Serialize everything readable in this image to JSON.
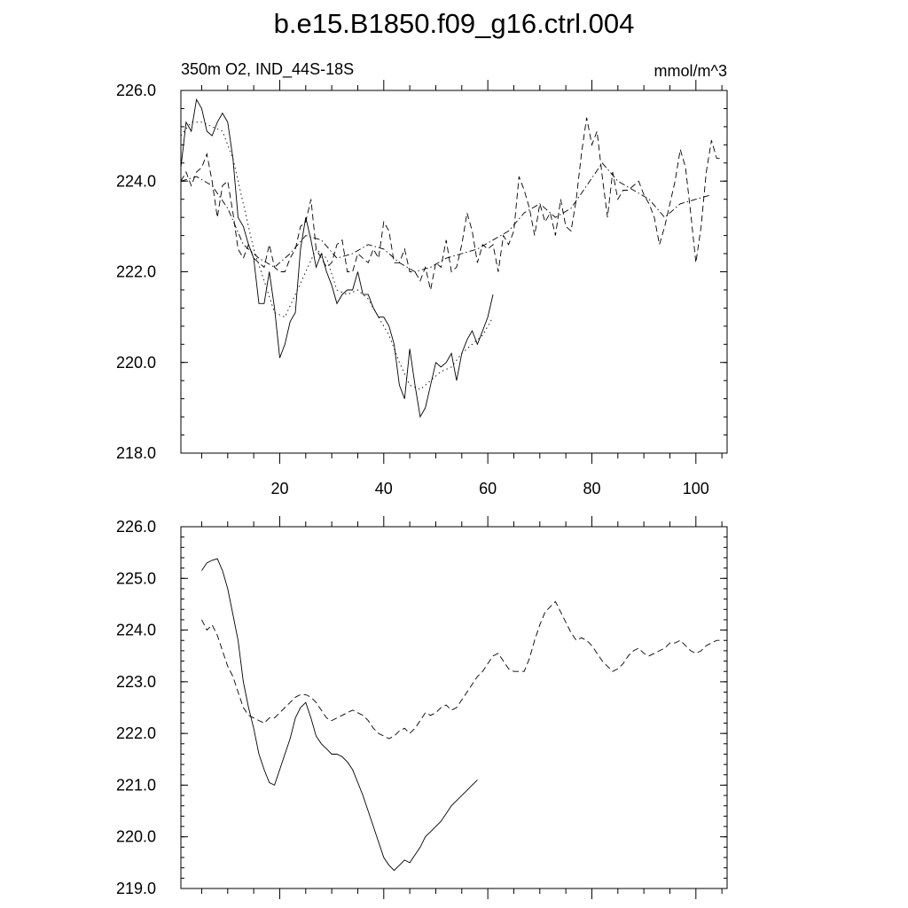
{
  "title": "b.e15.B1850.f09_g16.ctrl.004",
  "chart_data": [
    {
      "type": "line",
      "subtitle_left": "350m O2, IND_44S-18S",
      "subtitle_right": "mmol/m^3",
      "xlim": [
        1,
        106
      ],
      "ylim": [
        218,
        226
      ],
      "x_ticks": [
        20,
        40,
        60,
        80,
        100
      ],
      "x_tick_labels": [
        "20",
        "40",
        "60",
        "80",
        "100"
      ],
      "y_ticks": [
        218,
        220,
        222,
        224,
        226
      ],
      "y_tick_labels": [
        "218.0",
        "220.0",
        "222.0",
        "224.0",
        "226.0"
      ],
      "grid": false,
      "series": [
        {
          "dash": "solid",
          "x": [
            1,
            2,
            3,
            4,
            5,
            6,
            7,
            8,
            9,
            10,
            11,
            12,
            13,
            14,
            15,
            16,
            17,
            18,
            19,
            20,
            21,
            22,
            23,
            24,
            25,
            26,
            27,
            28,
            29,
            30,
            31,
            32,
            33,
            34,
            35,
            36,
            37,
            38,
            39,
            40,
            41,
            42,
            43,
            44,
            45,
            46,
            47,
            48,
            49,
            50,
            51,
            52,
            53,
            54,
            55,
            56,
            57,
            58,
            59,
            60,
            61
          ],
          "values": [
            224.3,
            225.3,
            225.1,
            225.8,
            225.6,
            225.1,
            225.0,
            225.3,
            225.5,
            225.3,
            224.5,
            223.2,
            223.0,
            222.6,
            222.3,
            221.3,
            221.3,
            222.0,
            221.2,
            220.1,
            220.4,
            220.9,
            221.1,
            222.5,
            223.2,
            222.7,
            222.1,
            222.4,
            222.0,
            221.7,
            221.3,
            221.5,
            221.6,
            221.6,
            222.0,
            221.5,
            221.5,
            221.2,
            221.0,
            221.0,
            220.8,
            220.4,
            219.5,
            219.2,
            220.3,
            219.5,
            218.8,
            219.0,
            219.5,
            220.0,
            219.9,
            220.0,
            220.2,
            219.6,
            220.2,
            220.5,
            220.7,
            220.4,
            220.7,
            221.0,
            221.5
          ]
        },
        {
          "dash": "dash",
          "x": [
            1,
            2,
            3,
            4,
            5,
            6,
            7,
            8,
            9,
            10,
            11,
            12,
            13,
            14,
            15,
            16,
            17,
            18,
            19,
            20,
            21,
            22,
            23,
            24,
            25,
            26,
            27,
            28,
            29,
            30,
            31,
            32,
            33,
            34,
            35,
            36,
            37,
            38,
            39,
            40,
            41,
            42,
            43,
            44,
            45,
            46,
            47,
            48,
            49,
            50,
            51,
            52,
            53,
            54,
            55,
            56,
            57,
            58,
            59,
            60,
            61,
            62,
            63,
            64,
            65,
            66,
            67,
            68,
            69,
            70,
            71,
            72,
            73,
            74,
            75,
            76,
            77,
            78,
            79,
            80,
            81,
            82,
            83,
            84,
            85,
            86,
            87,
            88,
            89,
            90,
            91,
            92,
            93,
            94,
            95,
            96,
            97,
            98,
            99,
            100,
            101,
            102,
            103,
            104,
            105
          ],
          "values": [
            224.0,
            224.2,
            223.9,
            224.2,
            224.3,
            224.6,
            224.0,
            223.2,
            223.9,
            224.0,
            223.3,
            222.5,
            222.3,
            222.6,
            222.3,
            222.2,
            222.1,
            222.6,
            222.1,
            222.0,
            222.0,
            222.3,
            222.5,
            223.0,
            223.1,
            223.6,
            222.5,
            222.3,
            222.1,
            222.2,
            222.6,
            222.7,
            222.0,
            222.0,
            222.4,
            222.3,
            222.2,
            222.5,
            222.3,
            223.1,
            222.9,
            222.2,
            222.2,
            222.5,
            222.0,
            222.0,
            221.8,
            222.1,
            221.6,
            222.2,
            222.1,
            222.7,
            222.0,
            222.1,
            222.6,
            223.3,
            222.9,
            222.2,
            222.6,
            222.5,
            222.6,
            222.0,
            222.8,
            222.6,
            222.9,
            224.1,
            223.8,
            223.4,
            222.8,
            223.5,
            223.1,
            223.3,
            222.8,
            223.6,
            223.0,
            222.9,
            223.6,
            224.6,
            225.4,
            224.8,
            225.1,
            224.1,
            223.2,
            224.2,
            223.6,
            223.8,
            223.8,
            223.9,
            224.0,
            223.7,
            223.5,
            223.2,
            222.6,
            223.0,
            223.5,
            224.0,
            224.7,
            224.3,
            223.3,
            222.2,
            223.0,
            224.2,
            224.9,
            224.5,
            224.5
          ]
        },
        {
          "dash": "dashdot",
          "x": [
            1,
            4,
            7,
            10,
            13,
            16,
            19,
            22,
            25,
            28,
            31,
            34,
            37,
            40,
            43,
            46,
            49,
            52,
            55,
            58,
            61,
            64,
            67,
            70,
            73,
            76,
            79,
            82,
            85,
            88,
            91,
            94,
            97,
            100,
            103
          ],
          "values": [
            224.0,
            224.1,
            223.9,
            223.4,
            222.6,
            222.3,
            222.1,
            222.4,
            222.8,
            222.7,
            222.3,
            222.4,
            222.6,
            222.5,
            222.2,
            222.0,
            222.1,
            222.3,
            222.4,
            222.5,
            222.7,
            222.9,
            223.3,
            223.5,
            223.2,
            223.4,
            223.9,
            224.4,
            224.0,
            223.8,
            223.6,
            223.2,
            223.5,
            223.6,
            223.7
          ]
        },
        {
          "dash": "dot",
          "x": [
            1,
            3,
            5,
            7,
            9,
            11,
            13,
            15,
            17,
            19,
            21,
            23,
            25,
            27,
            29,
            31,
            33,
            35,
            37,
            39,
            41,
            43,
            45,
            47,
            49,
            51,
            53,
            55,
            57,
            59,
            61
          ],
          "values": [
            225.0,
            225.3,
            225.3,
            225.2,
            225.1,
            224.5,
            223.5,
            222.5,
            221.8,
            221.1,
            221.0,
            221.5,
            222.0,
            222.5,
            222.3,
            221.6,
            221.5,
            221.6,
            221.4,
            221.0,
            220.6,
            220.0,
            219.5,
            219.4,
            219.6,
            219.8,
            219.9,
            220.2,
            220.4,
            220.6,
            221.0
          ]
        }
      ]
    },
    {
      "type": "line",
      "xlim": [
        1,
        106
      ],
      "ylim": [
        219,
        226
      ],
      "x_ticks": [
        20,
        40,
        60,
        80,
        100
      ],
      "y_ticks": [
        219,
        220,
        221,
        222,
        223,
        224,
        225,
        226
      ],
      "y_tick_labels": [
        "219.0",
        "220.0",
        "221.0",
        "222.0",
        "223.0",
        "224.0",
        "225.0",
        "226.0"
      ],
      "grid": false,
      "series": [
        {
          "dash": "solid",
          "x": [
            5,
            6,
            7,
            8,
            9,
            10,
            11,
            12,
            13,
            14,
            15,
            16,
            17,
            18,
            19,
            20,
            21,
            22,
            23,
            24,
            25,
            26,
            27,
            28,
            29,
            30,
            31,
            32,
            33,
            34,
            35,
            36,
            37,
            38,
            39,
            40,
            41,
            42,
            43,
            44,
            45,
            46,
            47,
            48,
            49,
            50,
            51,
            52,
            53,
            54,
            55,
            56,
            57,
            58
          ],
          "values": [
            225.15,
            225.3,
            225.35,
            225.38,
            225.15,
            224.8,
            224.3,
            223.8,
            223.0,
            222.5,
            222.1,
            221.6,
            221.3,
            221.05,
            221.0,
            221.3,
            221.6,
            221.9,
            222.3,
            222.5,
            222.6,
            222.3,
            221.95,
            221.8,
            221.7,
            221.6,
            221.6,
            221.55,
            221.45,
            221.3,
            221.05,
            220.8,
            220.5,
            220.2,
            219.9,
            219.6,
            219.45,
            219.35,
            219.45,
            219.55,
            219.5,
            219.65,
            219.8,
            220.0,
            220.1,
            220.2,
            220.3,
            220.45,
            220.6,
            220.7,
            220.8,
            220.9,
            221.0,
            221.1
          ]
        },
        {
          "dash": "dash",
          "x": [
            5,
            6,
            7,
            8,
            9,
            10,
            11,
            12,
            13,
            14,
            15,
            16,
            17,
            18,
            19,
            20,
            21,
            22,
            23,
            24,
            25,
            26,
            27,
            28,
            29,
            30,
            31,
            32,
            33,
            34,
            35,
            36,
            37,
            38,
            39,
            40,
            41,
            42,
            43,
            44,
            45,
            46,
            47,
            48,
            49,
            50,
            51,
            52,
            53,
            54,
            55,
            56,
            57,
            58,
            59,
            60,
            61,
            62,
            63,
            64,
            65,
            66,
            67,
            68,
            69,
            70,
            71,
            72,
            73,
            74,
            75,
            76,
            77,
            78,
            79,
            80,
            81,
            82,
            83,
            84,
            85,
            86,
            87,
            88,
            89,
            90,
            91,
            92,
            93,
            94,
            95,
            96,
            97,
            98,
            99,
            100,
            101,
            102,
            103,
            104,
            105
          ],
          "values": [
            224.2,
            224.0,
            224.1,
            223.9,
            223.6,
            223.3,
            223.1,
            222.8,
            222.5,
            222.35,
            222.3,
            222.25,
            222.2,
            222.3,
            222.3,
            222.4,
            222.5,
            222.6,
            222.7,
            222.75,
            222.75,
            222.7,
            222.6,
            222.45,
            222.3,
            222.25,
            222.3,
            222.35,
            222.4,
            222.45,
            222.4,
            222.35,
            222.25,
            222.1,
            222.0,
            221.95,
            221.9,
            221.95,
            222.05,
            222.1,
            222.0,
            222.1,
            222.25,
            222.4,
            222.35,
            222.4,
            222.5,
            222.55,
            222.45,
            222.5,
            222.65,
            222.8,
            222.95,
            223.1,
            223.2,
            223.35,
            223.5,
            223.55,
            223.4,
            223.25,
            223.2,
            223.2,
            223.2,
            223.45,
            223.8,
            224.1,
            224.35,
            224.45,
            224.55,
            224.35,
            224.15,
            223.95,
            223.8,
            223.85,
            223.8,
            223.7,
            223.55,
            223.4,
            223.3,
            223.2,
            223.25,
            223.35,
            223.5,
            223.6,
            223.65,
            223.55,
            223.5,
            223.55,
            223.6,
            223.65,
            223.75,
            223.75,
            223.8,
            223.7,
            223.6,
            223.55,
            223.6,
            223.7,
            223.75,
            223.8,
            223.8
          ]
        }
      ]
    }
  ]
}
